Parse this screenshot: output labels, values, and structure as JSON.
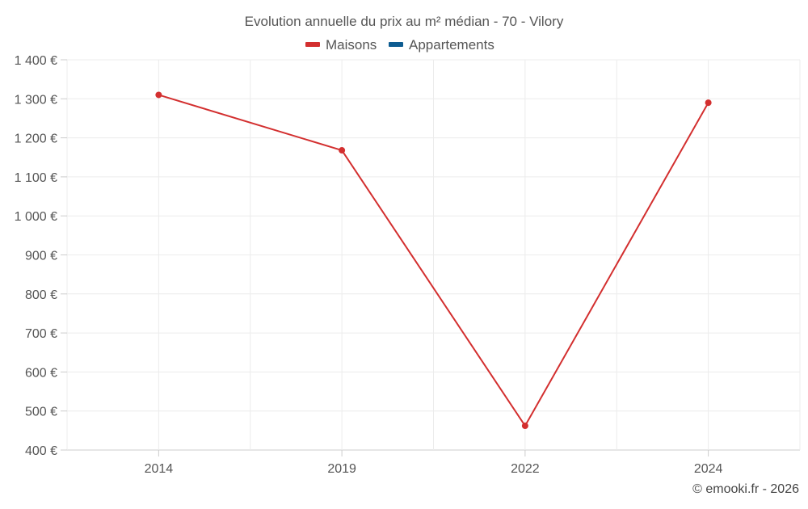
{
  "chart_data": {
    "type": "line",
    "title": "Evolution annuelle du prix au m² médian - 70 - Vilory",
    "categories": [
      "2014",
      "2019",
      "2022",
      "2024"
    ],
    "series": [
      {
        "name": "Maisons",
        "color": "#d32f2f",
        "values": [
          1310,
          1168,
          462,
          1290
        ]
      },
      {
        "name": "Appartements",
        "color": "#0d5c91",
        "values": [
          null,
          null,
          null,
          null
        ]
      }
    ],
    "y_ticks": [
      "1 400 €",
      "1 300 €",
      "1 200 €",
      "1 100 €",
      "1 000 €",
      "900 €",
      "800 €",
      "700 €",
      "600 €",
      "500 €",
      "400 €"
    ],
    "ylim": [
      400,
      1400
    ],
    "grid": true,
    "legend_position": "top-center",
    "xlabel": "",
    "ylabel": ""
  },
  "credit": "© emooki.fr - 2026"
}
